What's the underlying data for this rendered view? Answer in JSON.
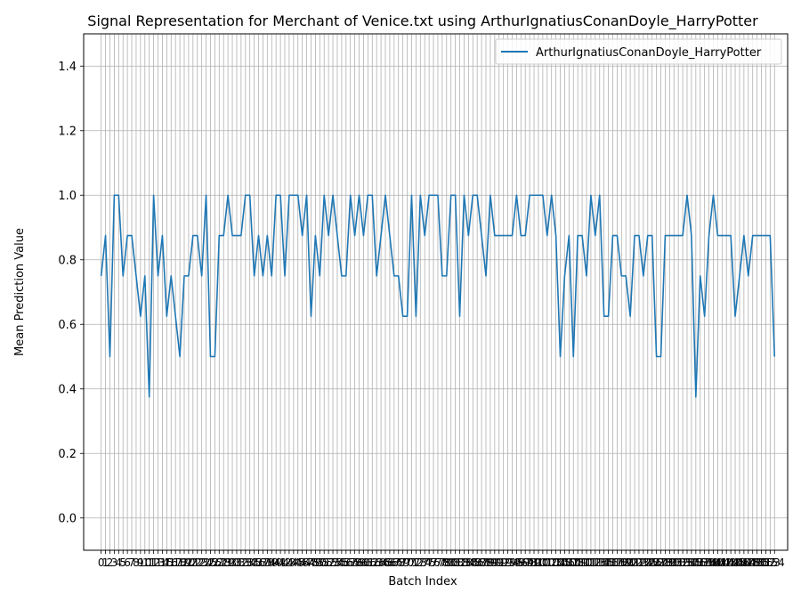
{
  "chart_data": {
    "type": "line",
    "title": "Signal Representation for Merchant of Venice.txt using ArthurIgnatiusConanDoyle_HarryPotter",
    "xlabel": "Batch Index",
    "ylabel": "Mean Prediction Value",
    "ylim": [
      -0.1,
      1.5
    ],
    "xlim": [
      -4,
      157
    ],
    "yticks": [
      0.0,
      0.2,
      0.4,
      0.6,
      0.8,
      1.0,
      1.2,
      1.4
    ],
    "ytick_labels": [
      "0.0",
      "0.2",
      "0.4",
      "0.6",
      "0.8",
      "1.0",
      "1.2",
      "1.4"
    ],
    "grid": true,
    "legend_position": "top-right",
    "color": "#1f77b4",
    "series": [
      {
        "name": "ArthurIgnatiusConanDoyle_HarryPotter",
        "values": [
          0.75,
          0.875,
          0.5,
          1.0,
          1.0,
          0.75,
          0.875,
          0.875,
          0.75,
          0.625,
          0.75,
          0.375,
          1.0,
          0.75,
          0.875,
          0.625,
          0.75,
          0.625,
          0.5,
          0.75,
          0.75,
          0.875,
          0.875,
          0.75,
          1.0,
          0.5,
          0.5,
          0.875,
          0.875,
          1.0,
          0.875,
          0.875,
          0.875,
          1.0,
          1.0,
          0.75,
          0.875,
          0.75,
          0.875,
          0.75,
          1.0,
          1.0,
          0.75,
          1.0,
          1.0,
          1.0,
          0.875,
          1.0,
          0.625,
          0.875,
          0.75,
          1.0,
          0.875,
          1.0,
          0.875,
          0.75,
          0.75,
          1.0,
          0.875,
          1.0,
          0.875,
          1.0,
          1.0,
          0.75,
          0.875,
          1.0,
          0.875,
          0.75,
          0.75,
          0.625,
          0.625,
          1.0,
          0.625,
          1.0,
          0.875,
          1.0,
          1.0,
          1.0,
          0.75,
          0.75,
          1.0,
          1.0,
          0.625,
          1.0,
          0.875,
          1.0,
          1.0,
          0.875,
          0.75,
          1.0,
          0.875,
          0.875,
          0.875,
          0.875,
          0.875,
          1.0,
          0.875,
          0.875,
          1.0,
          1.0,
          1.0,
          1.0,
          0.875,
          1.0,
          0.875,
          0.5,
          0.75,
          0.875,
          0.5,
          0.875,
          0.875,
          0.75,
          1.0,
          0.875,
          1.0,
          0.625,
          0.625,
          0.875,
          0.875,
          0.75,
          0.75,
          0.625,
          0.875,
          0.875,
          0.75,
          0.875,
          0.875,
          0.5,
          0.5,
          0.875,
          0.875,
          0.875,
          0.875,
          0.875,
          1.0,
          0.875,
          0.375,
          0.75,
          0.625,
          0.875,
          1.0,
          0.875,
          0.875,
          0.875,
          0.875,
          0.625,
          0.75,
          0.875,
          0.75,
          0.875,
          0.875,
          0.875,
          0.875,
          0.875,
          0.5
        ]
      }
    ]
  }
}
